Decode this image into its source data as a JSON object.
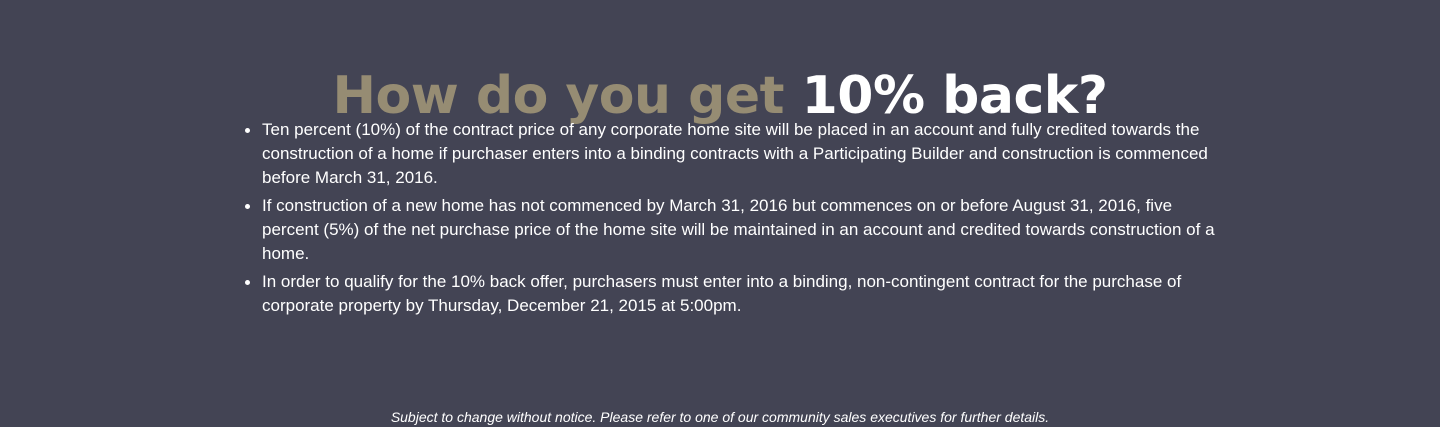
{
  "heading": {
    "part1": "How do you get",
    "part2": "10% back?"
  },
  "bullets": [
    "Ten percent (10%) of the contract price of any corporate home site will be placed in an account and fully credited towards the construction of a home if purchaser enters into a binding contracts with a Participating Builder and construction is commenced before March 31, 2016.",
    "If construction of a new home has not commenced by March 31, 2016 but commences on or before August 31, 2016, five percent (5%) of the net purchase price of the home site will be maintained in an account and credited towards construction of a home.",
    "In order to qualify for the 10% back offer, purchasers must enter into a binding, non-contingent contract for the purchase of corporate property by Thursday, December 21, 2015 at 5:00pm."
  ],
  "disclaimer": "Subject to change without notice. Please refer to one of our community sales executives for further details.",
  "colors": {
    "background": "#434454",
    "accent_gold": "#968c73",
    "text": "#ffffff"
  }
}
